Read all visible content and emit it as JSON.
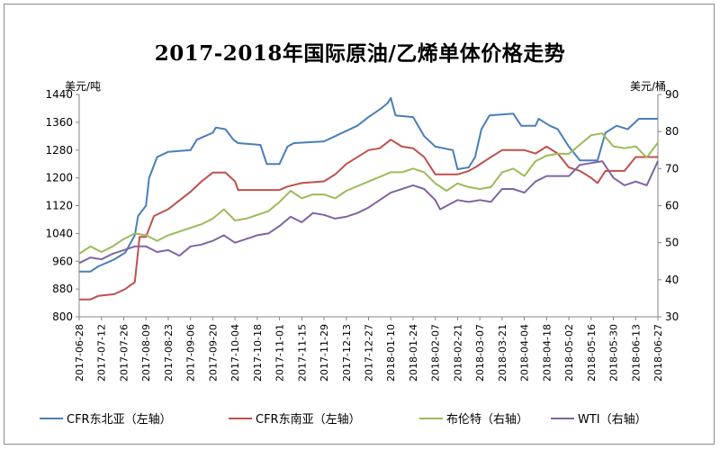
{
  "chart_data": {
    "type": "line",
    "title": "2017-2018年国际原油/乙烯单体价格走势",
    "ylabel_left": "美元/吨",
    "ylabel_right": "美元/桶",
    "ylim_left": [
      800,
      1440
    ],
    "yticks_left": [
      800,
      880,
      960,
      1040,
      1120,
      1200,
      1280,
      1360,
      1440
    ],
    "ylim_right": [
      30,
      90
    ],
    "yticks_right": [
      30,
      40,
      50,
      60,
      70,
      80,
      90
    ],
    "xlim": [
      "2017-06-28",
      "2018-06-27"
    ],
    "xticks": [
      "2017-06-28",
      "2017-07-12",
      "2017-07-26",
      "2017-08-09",
      "2017-08-23",
      "2017-09-06",
      "2017-09-20",
      "2017-10-04",
      "2017-10-18",
      "2017-11-01",
      "2017-11-15",
      "2017-11-29",
      "2017-12-13",
      "2017-12-27",
      "2018-01-10",
      "2018-01-24",
      "2018-02-07",
      "2018-02-21",
      "2018-03-07",
      "2018-03-21",
      "2018-04-04",
      "2018-04-18",
      "2018-05-02",
      "2018-05-16",
      "2018-05-30",
      "2018-06-13",
      "2018-06-27"
    ],
    "legend_position": "bottom",
    "grid": false,
    "series": [
      {
        "name": "CFR东北亚（左轴）",
        "axis": "left",
        "color": "#4a7ebb",
        "points": [
          [
            "2017-06-28",
            930
          ],
          [
            "2017-07-05",
            930
          ],
          [
            "2017-07-10",
            945
          ],
          [
            "2017-07-20",
            965
          ],
          [
            "2017-07-27",
            985
          ],
          [
            "2017-08-02",
            1035
          ],
          [
            "2017-08-04",
            1090
          ],
          [
            "2017-08-09",
            1120
          ],
          [
            "2017-08-11",
            1200
          ],
          [
            "2017-08-16",
            1260
          ],
          [
            "2017-08-23",
            1275
          ],
          [
            "2017-09-06",
            1280
          ],
          [
            "2017-09-10",
            1310
          ],
          [
            "2017-09-20",
            1330
          ],
          [
            "2017-09-22",
            1345
          ],
          [
            "2017-09-28",
            1340
          ],
          [
            "2017-10-03",
            1310
          ],
          [
            "2017-10-06",
            1300
          ],
          [
            "2017-10-20",
            1295
          ],
          [
            "2017-10-24",
            1240
          ],
          [
            "2017-11-01",
            1240
          ],
          [
            "2017-11-06",
            1290
          ],
          [
            "2017-11-10",
            1300
          ],
          [
            "2017-11-29",
            1305
          ],
          [
            "2017-12-06",
            1320
          ],
          [
            "2017-12-20",
            1350
          ],
          [
            "2017-12-27",
            1375
          ],
          [
            "2018-01-04",
            1400
          ],
          [
            "2018-01-08",
            1415
          ],
          [
            "2018-01-10",
            1430
          ],
          [
            "2018-01-13",
            1380
          ],
          [
            "2018-01-24",
            1375
          ],
          [
            "2018-01-31",
            1320
          ],
          [
            "2018-02-07",
            1290
          ],
          [
            "2018-02-18",
            1280
          ],
          [
            "2018-02-21",
            1225
          ],
          [
            "2018-02-28",
            1230
          ],
          [
            "2018-03-04",
            1260
          ],
          [
            "2018-03-08",
            1340
          ],
          [
            "2018-03-13",
            1380
          ],
          [
            "2018-03-28",
            1385
          ],
          [
            "2018-04-02",
            1350
          ],
          [
            "2018-04-11",
            1350
          ],
          [
            "2018-04-13",
            1370
          ],
          [
            "2018-04-20",
            1350
          ],
          [
            "2018-04-25",
            1340
          ],
          [
            "2018-05-02",
            1290
          ],
          [
            "2018-05-09",
            1250
          ],
          [
            "2018-05-20",
            1250
          ],
          [
            "2018-05-25",
            1330
          ],
          [
            "2018-06-01",
            1350
          ],
          [
            "2018-06-08",
            1340
          ],
          [
            "2018-06-15",
            1370
          ],
          [
            "2018-06-27",
            1370
          ]
        ]
      },
      {
        "name": "CFR东南亚（左轴）",
        "axis": "left",
        "color": "#c0504d",
        "points": [
          [
            "2017-06-28",
            850
          ],
          [
            "2017-07-05",
            850
          ],
          [
            "2017-07-10",
            860
          ],
          [
            "2017-07-20",
            865
          ],
          [
            "2017-07-27",
            880
          ],
          [
            "2017-08-02",
            900
          ],
          [
            "2017-08-05",
            1030
          ],
          [
            "2017-08-09",
            1030
          ],
          [
            "2017-08-14",
            1090
          ],
          [
            "2017-08-23",
            1110
          ],
          [
            "2017-09-06",
            1160
          ],
          [
            "2017-09-13",
            1190
          ],
          [
            "2017-09-20",
            1215
          ],
          [
            "2017-09-28",
            1215
          ],
          [
            "2017-10-04",
            1190
          ],
          [
            "2017-10-06",
            1165
          ],
          [
            "2017-11-01",
            1165
          ],
          [
            "2017-11-06",
            1175
          ],
          [
            "2017-11-15",
            1185
          ],
          [
            "2017-11-29",
            1190
          ],
          [
            "2017-12-06",
            1210
          ],
          [
            "2017-12-13",
            1240
          ],
          [
            "2017-12-27",
            1280
          ],
          [
            "2018-01-03",
            1285
          ],
          [
            "2018-01-10",
            1310
          ],
          [
            "2018-01-17",
            1290
          ],
          [
            "2018-01-24",
            1285
          ],
          [
            "2018-01-31",
            1260
          ],
          [
            "2018-02-07",
            1210
          ],
          [
            "2018-02-14",
            1210
          ],
          [
            "2018-02-21",
            1210
          ],
          [
            "2018-02-28",
            1220
          ],
          [
            "2018-03-04",
            1230
          ],
          [
            "2018-03-14",
            1260
          ],
          [
            "2018-03-21",
            1280
          ],
          [
            "2018-04-04",
            1280
          ],
          [
            "2018-04-11",
            1270
          ],
          [
            "2018-04-18",
            1290
          ],
          [
            "2018-04-25",
            1270
          ],
          [
            "2018-05-02",
            1230
          ],
          [
            "2018-05-09",
            1220
          ],
          [
            "2018-05-16",
            1200
          ],
          [
            "2018-05-20",
            1185
          ],
          [
            "2018-05-25",
            1220
          ],
          [
            "2018-05-30",
            1220
          ],
          [
            "2018-06-06",
            1220
          ],
          [
            "2018-06-13",
            1260
          ],
          [
            "2018-06-27",
            1260
          ]
        ]
      },
      {
        "name": "布伦特（右轴）",
        "axis": "right",
        "color": "#9bbb59",
        "points": [
          [
            "2017-06-28",
            47
          ],
          [
            "2017-07-05",
            49
          ],
          [
            "2017-07-12",
            47.5
          ],
          [
            "2017-07-19",
            49
          ],
          [
            "2017-07-26",
            51
          ],
          [
            "2017-08-02",
            52.5
          ],
          [
            "2017-08-09",
            52
          ],
          [
            "2017-08-16",
            50.5
          ],
          [
            "2017-08-23",
            52
          ],
          [
            "2017-09-06",
            54
          ],
          [
            "2017-09-13",
            55
          ],
          [
            "2017-09-20",
            56.5
          ],
          [
            "2017-09-27",
            59
          ],
          [
            "2017-10-04",
            56
          ],
          [
            "2017-10-11",
            56.5
          ],
          [
            "2017-10-18",
            57.5
          ],
          [
            "2017-10-25",
            58.5
          ],
          [
            "2017-11-01",
            61
          ],
          [
            "2017-11-08",
            64
          ],
          [
            "2017-11-15",
            62
          ],
          [
            "2017-11-22",
            63
          ],
          [
            "2017-11-29",
            63
          ],
          [
            "2017-12-06",
            62
          ],
          [
            "2017-12-13",
            64
          ],
          [
            "2017-12-27",
            66.5
          ],
          [
            "2018-01-10",
            69
          ],
          [
            "2018-01-17",
            69
          ],
          [
            "2018-01-24",
            70
          ],
          [
            "2018-01-31",
            69
          ],
          [
            "2018-02-07",
            66
          ],
          [
            "2018-02-14",
            64
          ],
          [
            "2018-02-21",
            66
          ],
          [
            "2018-02-28",
            65
          ],
          [
            "2018-03-07",
            64.5
          ],
          [
            "2018-03-14",
            65
          ],
          [
            "2018-03-21",
            69
          ],
          [
            "2018-03-28",
            70
          ],
          [
            "2018-04-04",
            68
          ],
          [
            "2018-04-11",
            72
          ],
          [
            "2018-04-18",
            73.5
          ],
          [
            "2018-04-25",
            74
          ],
          [
            "2018-05-02",
            74
          ],
          [
            "2018-05-09",
            76.5
          ],
          [
            "2018-05-16",
            79
          ],
          [
            "2018-05-23",
            79.5
          ],
          [
            "2018-05-30",
            76
          ],
          [
            "2018-06-06",
            75.5
          ],
          [
            "2018-06-13",
            76
          ],
          [
            "2018-06-20",
            73
          ],
          [
            "2018-06-27",
            77
          ]
        ]
      },
      {
        "name": "WTI（右轴）",
        "axis": "right",
        "color": "#8064a2",
        "points": [
          [
            "2017-06-28",
            44.5
          ],
          [
            "2017-07-05",
            46
          ],
          [
            "2017-07-12",
            45.5
          ],
          [
            "2017-07-19",
            47
          ],
          [
            "2017-07-26",
            48
          ],
          [
            "2017-08-02",
            49
          ],
          [
            "2017-08-09",
            49
          ],
          [
            "2017-08-16",
            47.5
          ],
          [
            "2017-08-23",
            48
          ],
          [
            "2017-08-30",
            46.5
          ],
          [
            "2017-09-06",
            49
          ],
          [
            "2017-09-13",
            49.5
          ],
          [
            "2017-09-20",
            50.5
          ],
          [
            "2017-09-27",
            52
          ],
          [
            "2017-10-04",
            50
          ],
          [
            "2017-10-11",
            51
          ],
          [
            "2017-10-18",
            52
          ],
          [
            "2017-10-25",
            52.5
          ],
          [
            "2017-11-01",
            54.5
          ],
          [
            "2017-11-08",
            57
          ],
          [
            "2017-11-15",
            55.5
          ],
          [
            "2017-11-22",
            58
          ],
          [
            "2017-11-29",
            57.5
          ],
          [
            "2017-12-06",
            56.5
          ],
          [
            "2017-12-13",
            57
          ],
          [
            "2017-12-20",
            58
          ],
          [
            "2017-12-27",
            59.5
          ],
          [
            "2018-01-10",
            63.5
          ],
          [
            "2018-01-24",
            65.5
          ],
          [
            "2018-01-31",
            64.5
          ],
          [
            "2018-02-07",
            61.5
          ],
          [
            "2018-02-10",
            59
          ],
          [
            "2018-02-21",
            61.5
          ],
          [
            "2018-02-28",
            61
          ],
          [
            "2018-03-07",
            61.5
          ],
          [
            "2018-03-14",
            61
          ],
          [
            "2018-03-21",
            64.5
          ],
          [
            "2018-03-28",
            64.5
          ],
          [
            "2018-04-04",
            63.5
          ],
          [
            "2018-04-11",
            66.5
          ],
          [
            "2018-04-18",
            68
          ],
          [
            "2018-04-25",
            68
          ],
          [
            "2018-05-02",
            68
          ],
          [
            "2018-05-09",
            71
          ],
          [
            "2018-05-16",
            71.5
          ],
          [
            "2018-05-23",
            72
          ],
          [
            "2018-05-30",
            67.5
          ],
          [
            "2018-06-06",
            65.5
          ],
          [
            "2018-06-13",
            66.5
          ],
          [
            "2018-06-20",
            65.5
          ],
          [
            "2018-06-27",
            72
          ]
        ]
      }
    ]
  }
}
